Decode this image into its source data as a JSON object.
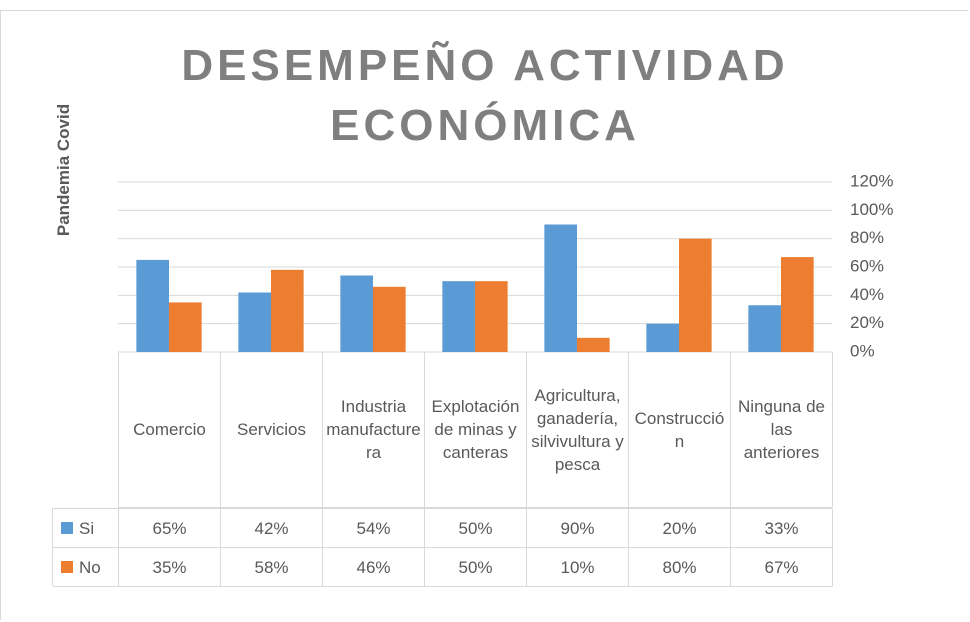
{
  "chart_data": {
    "type": "bar",
    "title": "DESEMPEÑO ACTIVIDAD ECONÓMICA",
    "y_label": "Pandemia Covid",
    "categories": [
      "Comercio",
      "Servicios",
      "Industria manufacturera",
      "Explotación de minas y canteras",
      "Agricultura, ganadería, silvivultura y pesca",
      "Construcción",
      "Ninguna de las anteriores"
    ],
    "series": [
      {
        "name": "Si",
        "color": "#5b9bd5",
        "values": [
          65,
          42,
          54,
          50,
          90,
          20,
          33
        ],
        "value_labels": [
          "65%",
          "42%",
          "54%",
          "50%",
          "90%",
          "20%",
          "33%"
        ]
      },
      {
        "name": "No",
        "color": "#ed7d31",
        "values": [
          35,
          58,
          46,
          50,
          10,
          80,
          67
        ],
        "value_labels": [
          "35%",
          "58%",
          "46%",
          "50%",
          "10%",
          "80%",
          "67%"
        ]
      }
    ],
    "ylim": [
      0,
      120
    ],
    "yticks": [
      {
        "value": 0,
        "label": "0%"
      },
      {
        "value": 20,
        "label": "20%"
      },
      {
        "value": 40,
        "label": "40%"
      },
      {
        "value": 60,
        "label": "60%"
      },
      {
        "value": 80,
        "label": "80%"
      },
      {
        "value": 100,
        "label": "100%"
      },
      {
        "value": 120,
        "label": "120%"
      }
    ],
    "grid": true,
    "y_axis_side": "right"
  }
}
